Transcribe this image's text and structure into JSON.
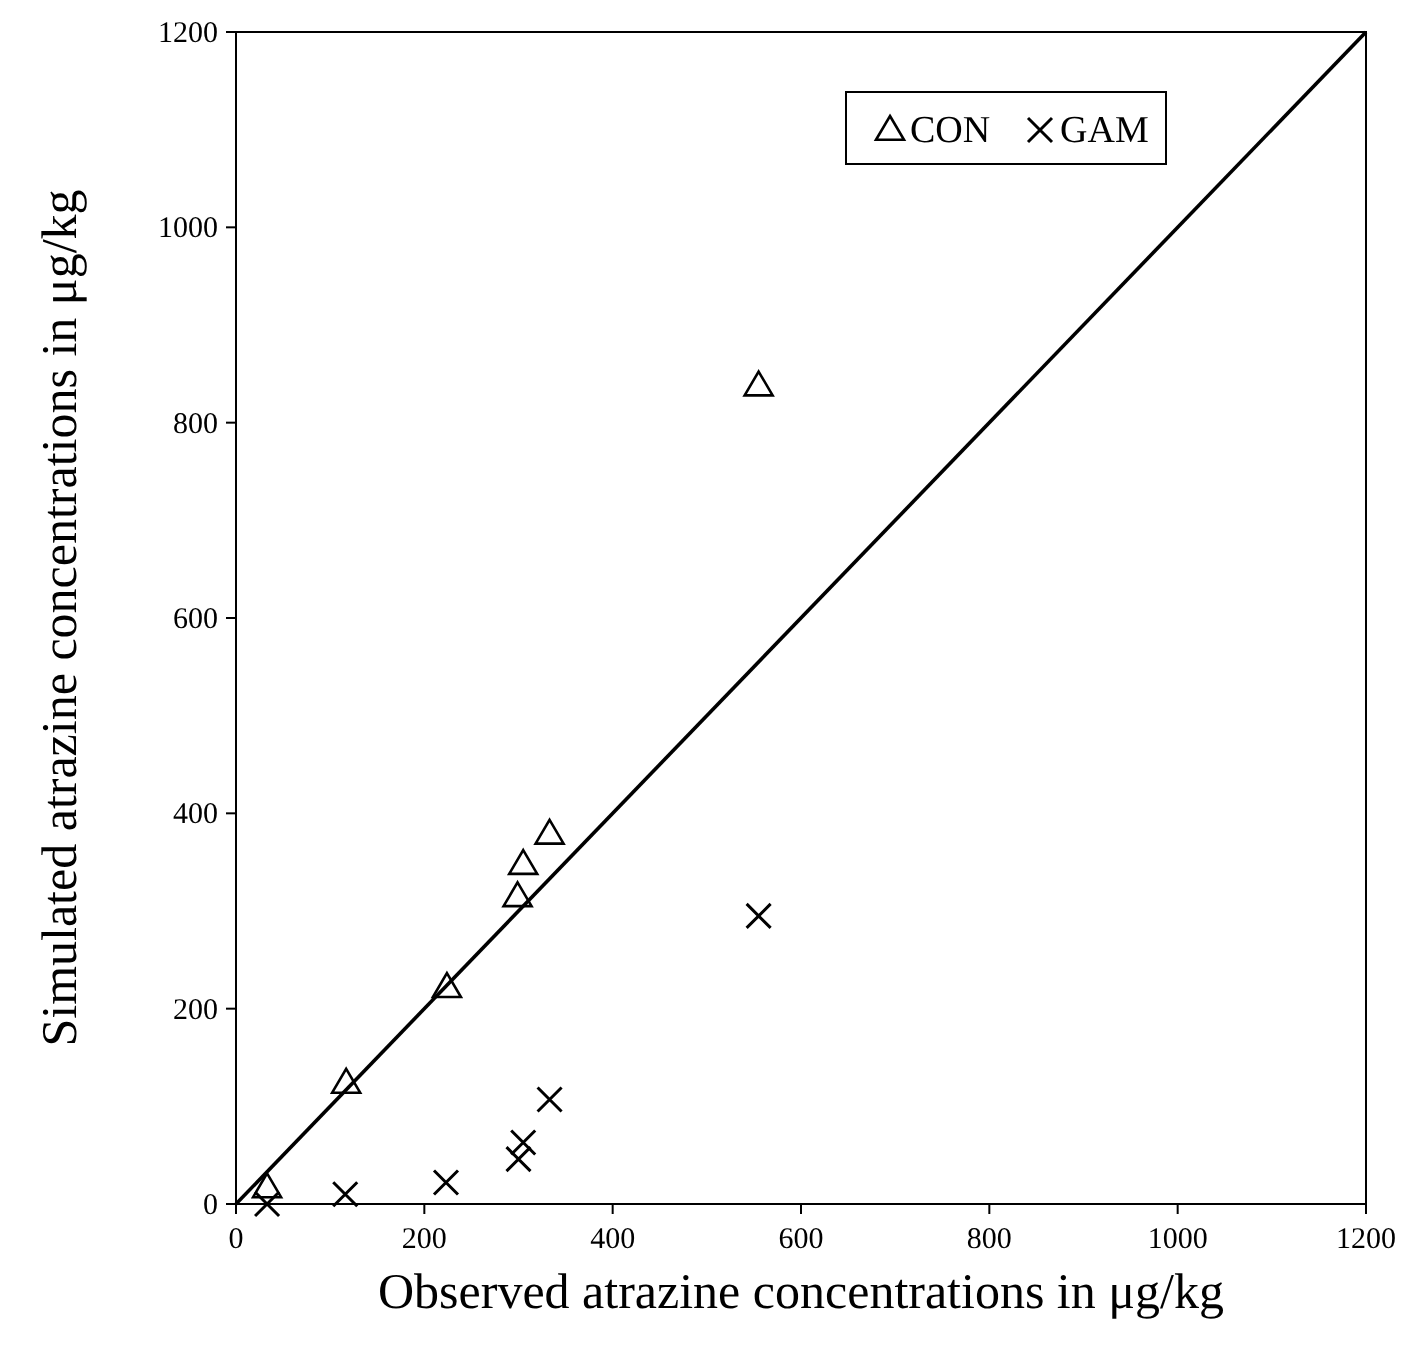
{
  "chart_data": {
    "type": "scatter",
    "xlabel": "Observed atrazine concentrations in μg/kg",
    "ylabel": "Simulated atrazine concentrations in μg/kg",
    "xlim": [
      0,
      1200
    ],
    "ylim": [
      0,
      1200
    ],
    "xticks": [
      0,
      200,
      400,
      600,
      800,
      1000,
      1200
    ],
    "yticks": [
      0,
      200,
      400,
      600,
      800,
      1000,
      1200
    ],
    "grid": false,
    "legend": "top right",
    "series": [
      {
        "name": "CON",
        "color": "#000000",
        "marker": "triangle",
        "x": [
          33,
          117,
          224,
          299,
          305,
          333,
          555
        ],
        "values": [
          17,
          124,
          222,
          315,
          348,
          379,
          838
        ]
      },
      {
        "name": "GAM",
        "color": "#000000",
        "marker": "cross",
        "x": [
          33,
          116,
          223,
          300,
          305,
          333,
          555
        ],
        "values": [
          0,
          10,
          22,
          46,
          63,
          107,
          295
        ]
      },
      {
        "type": "line",
        "color": "#000000",
        "marker": "none",
        "x": [
          0,
          1200
        ],
        "values": [
          0,
          1200
        ]
      }
    ]
  }
}
